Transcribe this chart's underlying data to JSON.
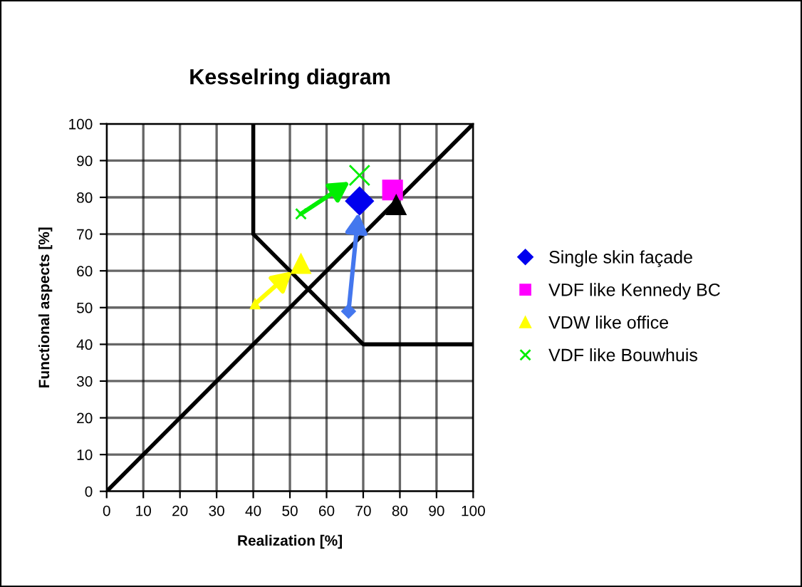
{
  "chart_data": {
    "type": "scatter",
    "title": "Kesselring diagram",
    "xlabel": "Realization [%]",
    "ylabel": "Functional aspects [%]",
    "xlim": [
      0,
      100
    ],
    "ylim": [
      0,
      100
    ],
    "xticks": [
      0,
      10,
      20,
      30,
      40,
      50,
      60,
      70,
      80,
      90,
      100
    ],
    "yticks": [
      0,
      10,
      20,
      30,
      40,
      50,
      60,
      70,
      80,
      90,
      100
    ],
    "grid": true,
    "legend": "right",
    "series": [
      {
        "type": "line",
        "color": "#000000",
        "marker": "none",
        "x": [
          0,
          100
        ],
        "values": [
          0,
          100
        ]
      },
      {
        "type": "line",
        "color": "#000000",
        "marker": "none",
        "x": [
          40,
          40,
          70,
          100
        ],
        "values": [
          100,
          70,
          40,
          40
        ]
      },
      {
        "name": "Single skin façade",
        "color": "#0000ee",
        "colors": [
          "#4477ee",
          "#0000ee"
        ],
        "marker": "diamond",
        "x": [
          66,
          69
        ],
        "values": [
          49,
          79
        ]
      },
      {
        "name": "VDF like Kennedy BC",
        "color": "#ff00ff",
        "marker": "square",
        "x": [
          78
        ],
        "values": [
          82
        ]
      },
      {
        "color": "#000000",
        "marker": "triangle",
        "x": [
          79
        ],
        "values": [
          78
        ]
      },
      {
        "name": "VDW like office",
        "color": "#ffff00",
        "marker": "triangle",
        "x": [
          40.5,
          53
        ],
        "values": [
          51,
          62
        ]
      },
      {
        "name": "VDF like Bouwhuis",
        "color": "#00ee00",
        "marker": "cross",
        "x": [
          53,
          69
        ],
        "values": [
          75.5,
          86
        ]
      }
    ]
  }
}
